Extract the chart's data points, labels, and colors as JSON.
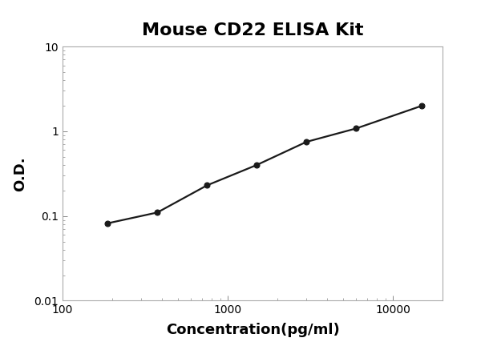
{
  "title": "Mouse CD22 ELISA Kit",
  "xlabel": "Concentration(pg/ml)",
  "ylabel": "O.D.",
  "x_data": [
    187.5,
    375,
    750,
    1500,
    3000,
    6000,
    15000
  ],
  "y_data": [
    0.082,
    0.11,
    0.23,
    0.4,
    0.75,
    1.08,
    2.0
  ],
  "xlim": [
    100,
    20000
  ],
  "ylim": [
    0.01,
    10
  ],
  "xticks": [
    100,
    1000,
    10000
  ],
  "yticks": [
    0.01,
    0.1,
    1,
    10
  ],
  "line_color": "#1a1a1a",
  "marker_color": "#1a1a1a",
  "marker_size": 5,
  "line_width": 1.6,
  "title_fontsize": 16,
  "label_fontsize": 13,
  "tick_fontsize": 10,
  "background_color": "#ffffff",
  "spine_color": "#aaaaaa",
  "grid": false
}
